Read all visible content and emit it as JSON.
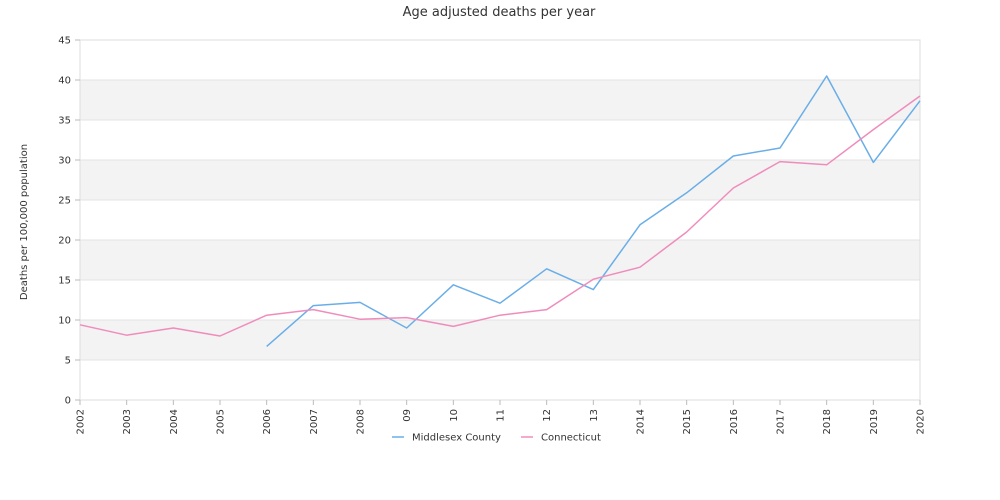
{
  "chart_data": {
    "type": "line",
    "title": "Age adjusted deaths per year",
    "xlabel": "",
    "ylabel": "Deaths per 100,000 population",
    "categories": [
      "2002",
      "2003",
      "2004",
      "2005",
      "2006",
      "2007",
      "2008",
      "09",
      "10",
      "11",
      "12",
      "13",
      "2014",
      "2015",
      "2016",
      "2017",
      "2018",
      "2019",
      "2020"
    ],
    "ylim": [
      0,
      45
    ],
    "yticks": [
      0,
      5,
      10,
      15,
      20,
      25,
      30,
      35,
      40,
      45
    ],
    "grid": "horizontal bands",
    "legend_position": "bottom-center",
    "series": [
      {
        "name": "Middlesex County",
        "color": "#6aaee8",
        "values": [
          null,
          null,
          null,
          null,
          6.7,
          11.8,
          12.2,
          9.0,
          14.4,
          12.1,
          16.4,
          13.8,
          21.9,
          25.9,
          30.5,
          31.5,
          40.5,
          29.7,
          37.4
        ]
      },
      {
        "name": "Connecticut",
        "color": "#f08cbc",
        "values": [
          9.4,
          8.1,
          9.0,
          8.0,
          10.6,
          11.3,
          10.1,
          10.3,
          9.2,
          10.6,
          11.3,
          15.1,
          16.6,
          21.0,
          26.5,
          29.8,
          29.4,
          33.8,
          38.0
        ]
      }
    ]
  }
}
